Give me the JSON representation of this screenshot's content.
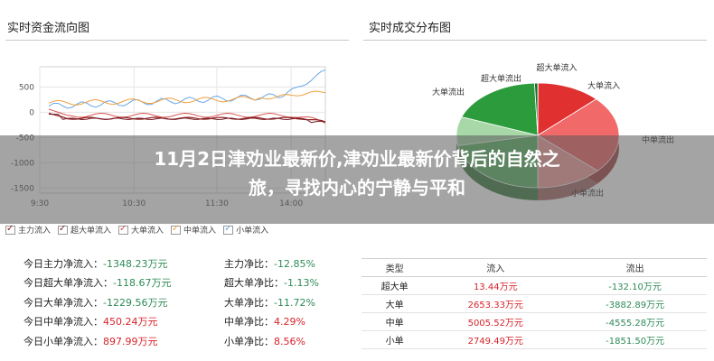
{
  "left_panel": {
    "title": "实时资金流向图"
  },
  "right_panel": {
    "title": "实时成交分布图"
  },
  "flow_chart": {
    "y_ticks": [
      "500",
      "0",
      "-500",
      "-1000",
      "-1500"
    ],
    "x_ticks": [
      "9:30",
      "10:30",
      "11:30",
      "14:00"
    ],
    "legend": [
      "主力流入",
      "超大单流入",
      "大单流入",
      "中单流入",
      "小单流入"
    ],
    "colors": {
      "main": "#8b1a1a",
      "super": "#7b1f2a",
      "large": "#d9534f",
      "medium": "#f0a040",
      "small": "#6aa8e8"
    }
  },
  "chart_data": {
    "type": "pie",
    "labels": [
      "超大单流入",
      "大单流入",
      "中单流入",
      "小单流入",
      "中单流出",
      "小单流出",
      "大单流出",
      "超大单流出"
    ],
    "values": [
      13.44,
      2653.33,
      5005.52,
      2749.49,
      4555.28,
      1851.5,
      3882.89,
      132.1
    ],
    "colors": [
      "#8b0a0a",
      "#e03030",
      "#f2696a",
      "#f6a0a0",
      "#5fb86a",
      "#a8d8a8",
      "#2c9b3c",
      "#1e6b2a"
    ],
    "visible_labels": [
      "超大单流入",
      "大单流入",
      "中单流出",
      "小单流出",
      "大单流出",
      "超大单流出"
    ]
  },
  "stats": [
    {
      "label": "今日主力净流入：",
      "value": "-1348.23万元",
      "neg": true
    },
    {
      "label": "今日超大单净流入：",
      "value": "-118.67万元",
      "neg": true
    },
    {
      "label": "今日大单净流入：",
      "value": "-1229.56万元",
      "neg": true
    },
    {
      "label": "今日中单净流入：",
      "value": "450.24万元",
      "neg": false
    },
    {
      "label": "今日小单净流入：",
      "value": "897.99万元",
      "neg": false
    }
  ],
  "ratios": [
    {
      "label": "主力净比：",
      "value": "-12.85%",
      "neg": true
    },
    {
      "label": "超大单净比：",
      "value": "-1.13%",
      "neg": true
    },
    {
      "label": "大单净比：",
      "value": "-11.72%",
      "neg": true
    },
    {
      "label": "中单净比：",
      "value": "4.29%",
      "neg": false
    },
    {
      "label": "小单净比：",
      "value": "8.56%",
      "neg": false
    }
  ],
  "table": {
    "headers": [
      "类型",
      "流入",
      "流出"
    ],
    "rows": [
      {
        "type": "超大单",
        "in": "13.44万元",
        "out": "-132.10万元"
      },
      {
        "type": "大单",
        "in": "2653.33万元",
        "out": "-3882.89万元"
      },
      {
        "type": "中单",
        "in": "5005.52万元",
        "out": "-4555.28万元"
      },
      {
        "type": "小单",
        "in": "2749.49万元",
        "out": "-1851.50万元"
      }
    ]
  },
  "headline": {
    "line1": "11月2日津劝业最新价,​​津劝业最新价背后的自然之",
    "line2": "旅，寻找内心的宁静与平和"
  }
}
